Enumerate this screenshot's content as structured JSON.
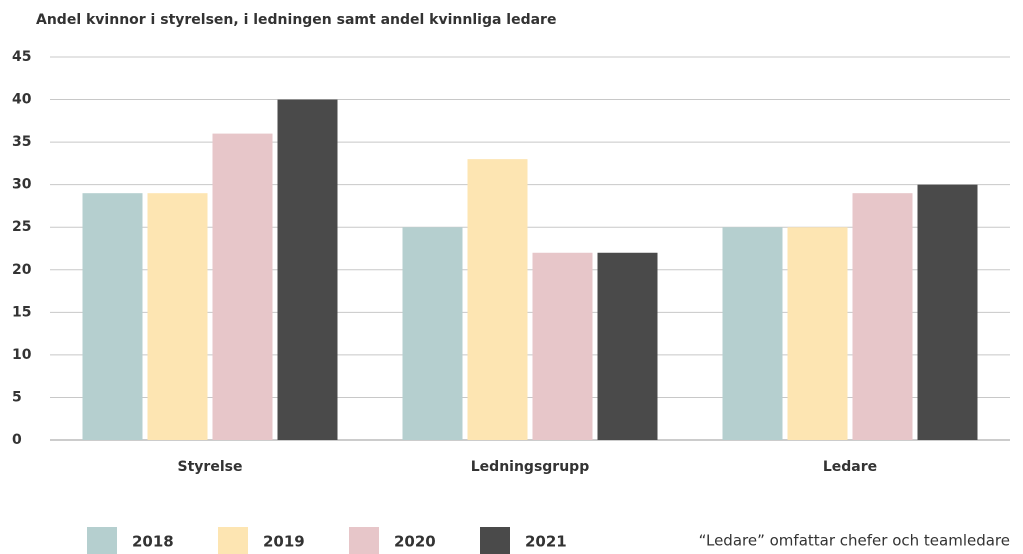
{
  "chart_data": {
    "type": "bar",
    "title": "Andel kvinnor i styrelsen, i ledningen samt andel kvinnliga ledare",
    "categories": [
      "Styrelse",
      "Ledningsgrupp",
      "Ledare"
    ],
    "series": [
      {
        "name": "2018",
        "color": "#b5cfcf",
        "values": [
          29,
          25,
          25
        ]
      },
      {
        "name": "2019",
        "color": "#fde5b2",
        "values": [
          29,
          33,
          25
        ]
      },
      {
        "name": "2020",
        "color": "#e7c6c9",
        "values": [
          36,
          22,
          29
        ]
      },
      {
        "name": "2021",
        "color": "#4a4a4a",
        "values": [
          40,
          22,
          30
        ]
      }
    ],
    "ylim": [
      0,
      45
    ],
    "yticks": [
      0,
      5,
      10,
      15,
      20,
      25,
      30,
      35,
      40,
      45
    ],
    "grid": true,
    "legend": "bottom",
    "note": "“Ledare” omfattar chefer och teamledare"
  }
}
